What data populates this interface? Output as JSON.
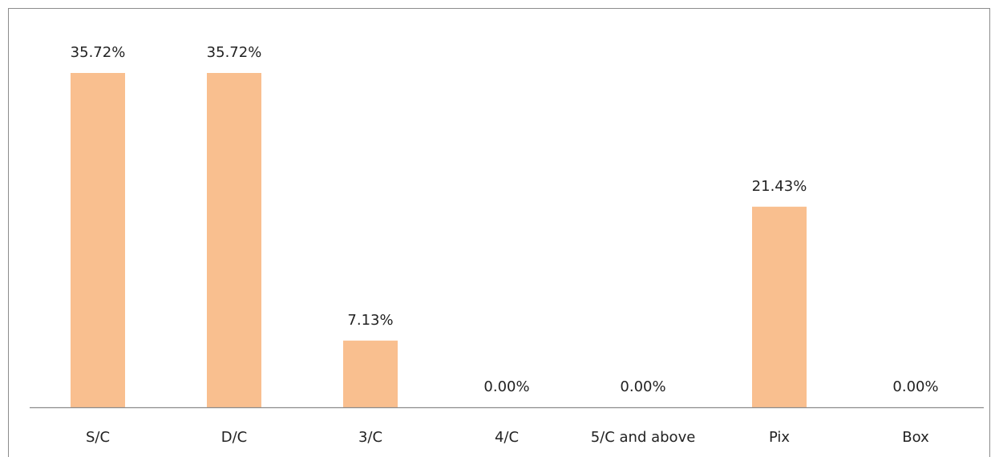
{
  "chart_data": {
    "type": "bar",
    "title": "",
    "xlabel": "",
    "ylabel": "",
    "categories": [
      "S/C",
      "D/C",
      "3/C",
      "4/C",
      "5/C and above",
      "Pix",
      "Box"
    ],
    "values": [
      35.72,
      35.72,
      7.13,
      0.0,
      0.0,
      21.43,
      0.0
    ],
    "data_labels": [
      "35.72%",
      "35.72%",
      "7.13%",
      "0.00%",
      "0.00%",
      "21.43%",
      "0.00%"
    ],
    "ylim": [
      0,
      40
    ],
    "grid": false,
    "legend": "none",
    "bar_color": "#F9BF8F",
    "axis_color": "#8c8c8c"
  }
}
